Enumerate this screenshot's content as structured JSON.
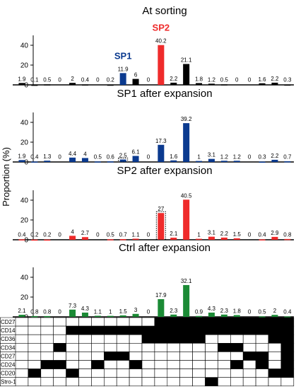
{
  "figure": {
    "ylabel": "Proportion (%)",
    "ylim": [
      0,
      50
    ],
    "yticks": [
      0,
      20,
      40
    ],
    "markers": [
      "CD274",
      "CD146",
      "CD36",
      "CD34",
      "CD271",
      "CD248",
      "CD200",
      "Stro-1"
    ]
  },
  "colors": {
    "black": "#000000",
    "blue": "#0b3a8f",
    "red": "#ef2b2b",
    "green": "#1b8a35"
  },
  "chart_data": [
    {
      "type": "bar",
      "title": "At sorting",
      "annotations": [
        {
          "text": "SP1",
          "bar_index": 10,
          "color": "#0b3a8f"
        },
        {
          "text": "SP2",
          "bar_index": 13,
          "color": "#ef2b2b"
        }
      ],
      "values": [
        1.9,
        0.1,
        0.5,
        0,
        2.0,
        0.4,
        0,
        0.2,
        11.9,
        6.0,
        0,
        40.2,
        2.2,
        21.1,
        1.8,
        1.2,
        0.5,
        0,
        0,
        1.6,
        2.2,
        0.3
      ],
      "colors": [
        "black",
        "black",
        "black",
        "black",
        "black",
        "black",
        "black",
        "black",
        "blue",
        "black",
        "black",
        "red",
        "black",
        "black",
        "black",
        "black",
        "black",
        "black",
        "black",
        "black",
        "black",
        "black"
      ],
      "dotted": [],
      "ylim": [
        0,
        50
      ]
    },
    {
      "type": "bar",
      "title": "SP1 after expansion",
      "values": [
        1.9,
        0.4,
        1.3,
        0,
        4.4,
        4.0,
        0.5,
        0.6,
        2.5,
        6.1,
        0,
        17.3,
        1.6,
        39.2,
        1.0,
        3.1,
        1.2,
        1.2,
        0,
        0.3,
        2.2,
        0.7
      ],
      "colors": [
        "blue",
        "blue",
        "blue",
        "blue",
        "blue",
        "blue",
        "blue",
        "blue",
        "blue",
        "blue",
        "blue",
        "blue",
        "blue",
        "blue",
        "blue",
        "blue",
        "blue",
        "blue",
        "blue",
        "blue",
        "blue",
        "blue"
      ],
      "dotted": [
        8
      ],
      "ylim": [
        0,
        50
      ]
    },
    {
      "type": "bar",
      "title": "SP2 after expansion",
      "values": [
        0.4,
        0.2,
        0.2,
        0,
        4.0,
        2.7,
        0,
        0.5,
        0.7,
        1.1,
        0,
        27.0,
        2.1,
        40.5,
        1.0,
        3.1,
        2.2,
        1.5,
        0,
        0.4,
        2.9,
        0.8
      ],
      "colors": [
        "red",
        "red",
        "red",
        "red",
        "red",
        "red",
        "red",
        "red",
        "red",
        "red",
        "red",
        "red",
        "red",
        "red",
        "red",
        "red",
        "red",
        "red",
        "red",
        "red",
        "red",
        "red"
      ],
      "dotted": [
        11
      ],
      "ylim": [
        0,
        50
      ]
    },
    {
      "type": "bar",
      "title": "Ctrl after expansion",
      "values": [
        2.1,
        0.8,
        0.8,
        0,
        7.3,
        4.3,
        1.1,
        1.0,
        1.5,
        3.0,
        0,
        17.9,
        2.3,
        32.1,
        0.9,
        4.3,
        2.3,
        1.8,
        0,
        0.5,
        2.0,
        0.4
      ],
      "colors": [
        "green",
        "green",
        "green",
        "green",
        "green",
        "green",
        "green",
        "green",
        "green",
        "green",
        "green",
        "green",
        "green",
        "green",
        "green",
        "green",
        "green",
        "green",
        "green",
        "green",
        "green",
        "green"
      ],
      "dotted": [],
      "ylim": [
        0,
        50
      ]
    }
  ],
  "phenotype_matrix": {
    "rows": [
      "CD274",
      "CD146",
      "CD36",
      "CD34",
      "CD271",
      "CD248",
      "CD200",
      "Stro-1"
    ],
    "filled": [
      [
        0,
        0,
        0,
        0,
        0,
        0,
        0,
        0,
        0,
        0,
        0,
        1,
        1,
        1,
        1,
        1,
        1,
        1,
        1,
        1,
        1,
        1
      ],
      [
        0,
        0,
        0,
        0,
        1,
        1,
        1,
        1,
        1,
        1,
        1,
        1,
        1,
        1,
        1,
        1,
        1,
        1,
        1,
        1,
        1,
        1
      ],
      [
        0,
        0,
        0,
        0,
        0,
        0,
        0,
        0,
        0,
        0,
        1,
        1,
        1,
        1,
        1,
        0,
        0,
        0,
        0,
        0,
        1,
        1
      ],
      [
        0,
        0,
        0,
        1,
        0,
        0,
        0,
        0,
        0,
        0,
        0,
        0,
        0,
        0,
        0,
        0,
        1,
        1,
        0,
        0,
        0,
        1
      ],
      [
        0,
        0,
        0,
        0,
        0,
        0,
        0,
        1,
        1,
        0,
        0,
        0,
        0,
        0,
        0,
        0,
        0,
        0,
        1,
        1,
        0,
        1
      ],
      [
        0,
        0,
        1,
        1,
        0,
        0,
        1,
        0,
        0,
        1,
        0,
        0,
        0,
        0,
        0,
        0,
        0,
        1,
        0,
        1,
        0,
        1
      ],
      [
        0,
        1,
        0,
        0,
        1,
        0,
        0,
        0,
        0,
        0,
        0,
        0,
        0,
        0,
        0,
        0,
        0,
        0,
        0,
        0,
        1,
        1
      ],
      [
        0,
        0,
        0,
        0,
        0,
        0,
        0,
        0,
        0,
        0,
        0,
        0,
        0,
        0,
        0,
        1,
        0,
        0,
        0,
        0,
        0,
        0
      ]
    ]
  }
}
